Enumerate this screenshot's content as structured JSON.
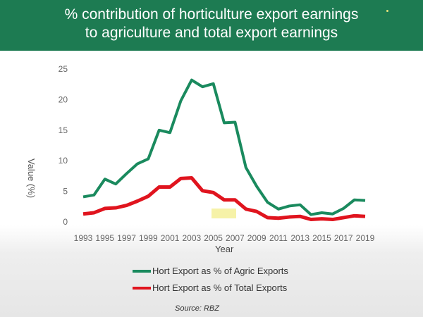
{
  "chart_data": {
    "type": "line",
    "title": "% contribution of horticulture export earnings",
    "title_line2": "to agriculture and total export earnings",
    "xlabel": "Year",
    "ylabel": "Value (%)",
    "ylim": [
      0,
      25
    ],
    "yticks": [
      0,
      5,
      10,
      15,
      20,
      25
    ],
    "x": [
      1993,
      1994,
      1995,
      1996,
      1997,
      1998,
      1999,
      2000,
      2001,
      2002,
      2003,
      2004,
      2005,
      2006,
      2007,
      2008,
      2009,
      2010,
      2011,
      2012,
      2013,
      2014,
      2015,
      2016,
      2017,
      2018,
      2019
    ],
    "xticks": [
      "1993",
      "1995",
      "1997",
      "1999",
      "2001",
      "2003",
      "2005",
      "2007",
      "2009",
      "2011",
      "2013",
      "2015",
      "2017",
      "2019"
    ],
    "series": [
      {
        "name": "Hort Export as % of Agric Exports",
        "color": "#1a8a5e",
        "values": [
          4.1,
          4.4,
          7.0,
          6.2,
          7.9,
          9.5,
          10.3,
          15.0,
          14.6,
          19.8,
          23.2,
          22.1,
          22.6,
          16.2,
          16.3,
          8.9,
          5.8,
          3.2,
          2.1,
          2.6,
          2.8,
          1.2,
          1.5,
          1.3,
          2.2,
          3.6,
          3.5
        ]
      },
      {
        "name": "Hort Export as % of Total Exports",
        "color": "#e0141e",
        "values": [
          1.3,
          1.5,
          2.2,
          2.3,
          2.7,
          3.4,
          4.2,
          5.7,
          5.7,
          7.1,
          7.2,
          5.1,
          4.8,
          3.6,
          3.6,
          2.1,
          1.7,
          0.7,
          0.6,
          0.8,
          0.9,
          0.4,
          0.5,
          0.4,
          0.7,
          1.0,
          0.9
        ]
      }
    ],
    "legend_position": "bottom",
    "source": "Source: RBZ"
  }
}
